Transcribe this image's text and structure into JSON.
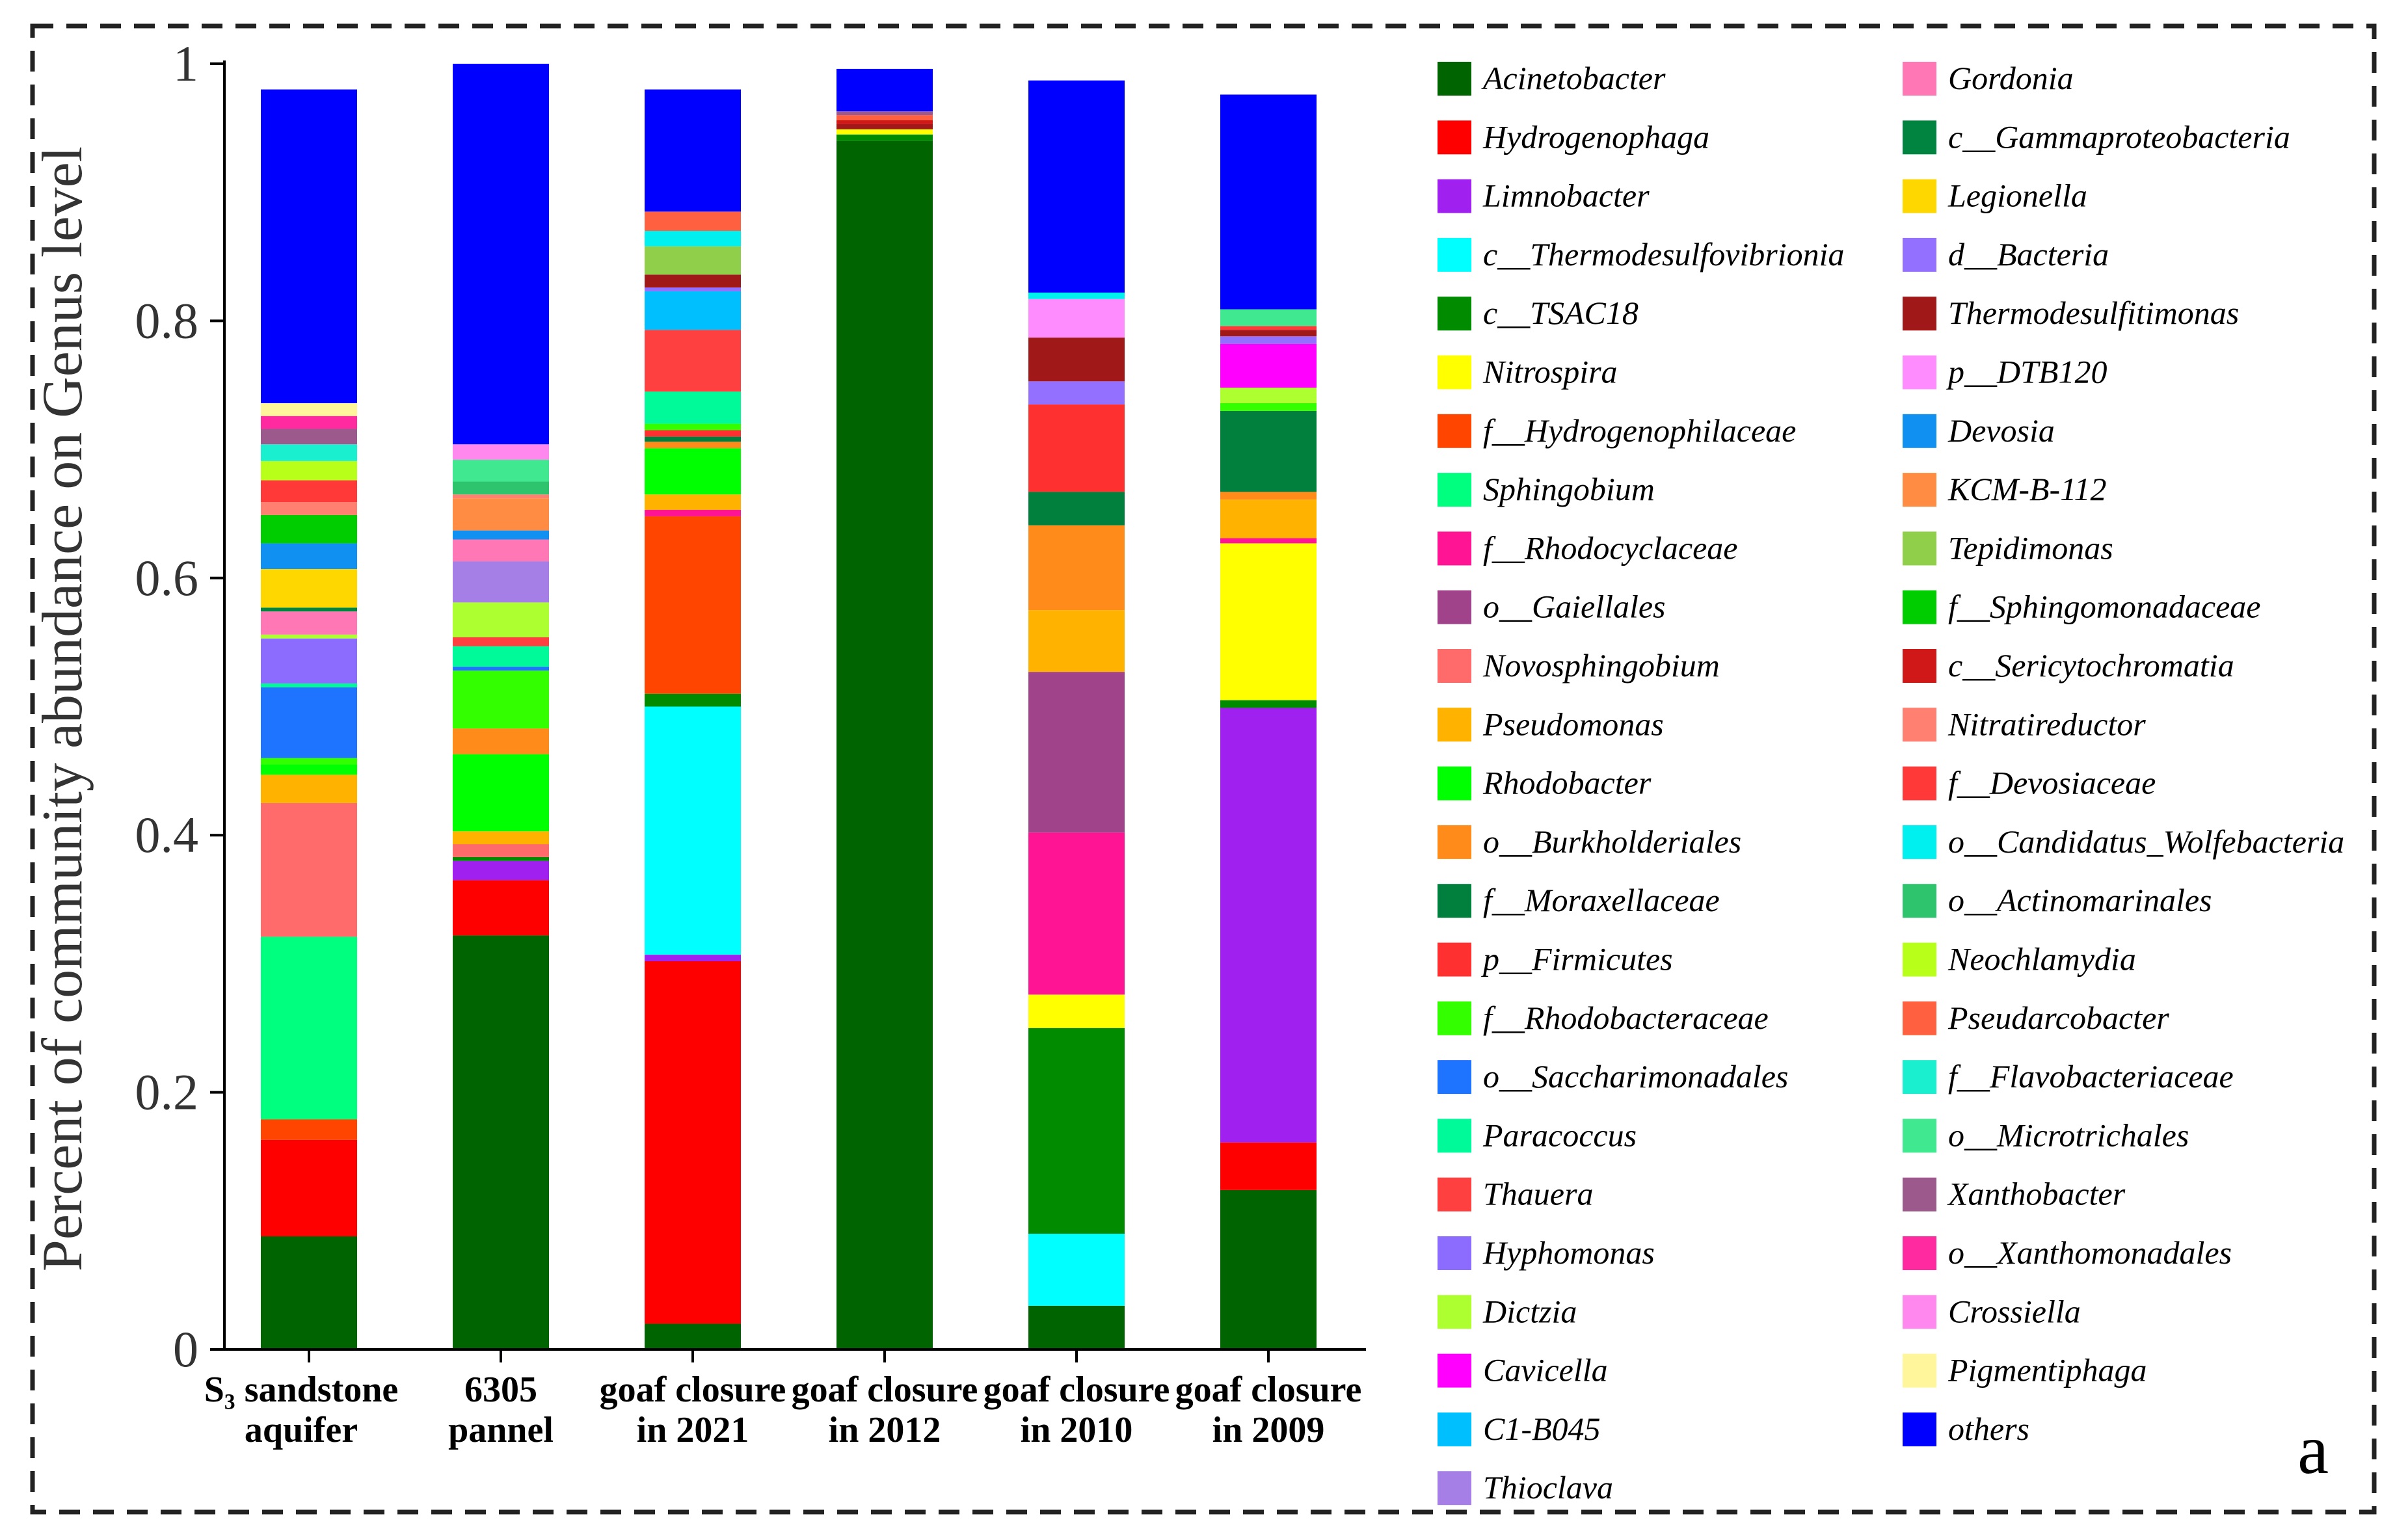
{
  "chart_data": {
    "type": "bar",
    "stacked": true,
    "ylabel": "Percent of community abundance on Genus level",
    "ylim": [
      0,
      1
    ],
    "yticks": [
      "0",
      "0.2",
      "0.4",
      "0.6",
      "0.8",
      "1"
    ],
    "panel_label": "a",
    "categories": [
      [
        "S₃ sandstone",
        "aquifer"
      ],
      [
        "6305",
        "pannel"
      ],
      [
        "goaf closure",
        "in 2021"
      ],
      [
        "goaf closure",
        "in 2012"
      ],
      [
        "goaf closure",
        "in 2010"
      ],
      [
        "goaf closure",
        "in 2009"
      ]
    ],
    "series": [
      {
        "name": "Acinetobacter",
        "color": "#006400",
        "values": [
          0.088,
          0.322,
          0.02,
          0.94,
          0.034,
          0.124
        ]
      },
      {
        "name": "Hydrogenophaga",
        "color": "#FF0000",
        "values": [
          0.075,
          0.043,
          0.282,
          0.0,
          0.0,
          0.037
        ]
      },
      {
        "name": "Limnobacter",
        "color": "#A020F0",
        "values": [
          0.0,
          0.015,
          0.005,
          0.0,
          0.0,
          0.338
        ]
      },
      {
        "name": "c__Thermodesulfovibrionia",
        "color": "#00FFFF",
        "values": [
          0.0,
          0.0,
          0.193,
          0.0,
          0.056,
          0.0
        ]
      },
      {
        "name": "c__TSAC18",
        "color": "#008B00",
        "values": [
          0.0,
          0.003,
          0.01,
          0.005,
          0.16,
          0.006
        ]
      },
      {
        "name": "Nitrospira",
        "color": "#FFFF00",
        "values": [
          0.0,
          0.0,
          0.0,
          0.004,
          0.026,
          0.122
        ]
      },
      {
        "name": "f__Hydrogenophilaceae",
        "color": "#FF4500",
        "values": [
          0.016,
          0.0,
          0.138,
          0.0,
          0.0,
          0.0
        ]
      },
      {
        "name": "Sphingobium",
        "color": "#00FF7F",
        "values": [
          0.142,
          0.0,
          0.0,
          0.0,
          0.0,
          0.0
        ]
      },
      {
        "name": "f__Rhodocyclaceae",
        "color": "#FF1493",
        "values": [
          0.0,
          0.0,
          0.005,
          0.0,
          0.126,
          0.004
        ]
      },
      {
        "name": "o__Gaiellales",
        "color": "#A0438B",
        "values": [
          0.0,
          0.0,
          0.0,
          0.0,
          0.125,
          0.0
        ]
      },
      {
        "name": "Novosphingobium",
        "color": "#FF6A6A",
        "values": [
          0.104,
          0.01,
          0.0,
          0.0,
          0.0,
          0.0
        ]
      },
      {
        "name": "Pseudomonas",
        "color": "#FFB300",
        "values": [
          0.022,
          0.01,
          0.012,
          0.0,
          0.048,
          0.03
        ]
      },
      {
        "name": "Rhodobacter",
        "color": "#00FF00",
        "values": [
          0.008,
          0.06,
          0.036,
          0.0,
          0.0,
          0.0
        ]
      },
      {
        "name": "o__Burkholderiales",
        "color": "#FF8C1A",
        "values": [
          0.0,
          0.02,
          0.005,
          0.0,
          0.066,
          0.006
        ]
      },
      {
        "name": "f__Moraxellaceae",
        "color": "#00803C",
        "values": [
          0.0,
          0.0,
          0.004,
          0.0,
          0.026,
          0.063
        ]
      },
      {
        "name": "p__Firmicutes",
        "color": "#FF3030",
        "values": [
          0.0,
          0.0,
          0.005,
          0.0,
          0.068,
          0.0
        ]
      },
      {
        "name": "f__Rhodobacteraceae",
        "color": "#33FF00",
        "values": [
          0.005,
          0.045,
          0.005,
          0.0,
          0.0,
          0.006
        ]
      },
      {
        "name": "o__Saccharimonadales",
        "color": "#1E73FF",
        "values": [
          0.055,
          0.003,
          0.0,
          0.0,
          0.0,
          0.0
        ]
      },
      {
        "name": "Paracoccus",
        "color": "#00FA9A",
        "values": [
          0.003,
          0.016,
          0.025,
          0.0,
          0.0,
          0.0
        ]
      },
      {
        "name": "Thauera",
        "color": "#FF4040",
        "values": [
          0.0,
          0.007,
          0.048,
          0.0,
          0.0,
          0.0
        ]
      },
      {
        "name": "Hyphomonas",
        "color": "#8C6BFF",
        "values": [
          0.035,
          0.0,
          0.0,
          0.0,
          0.0,
          0.0
        ]
      },
      {
        "name": "Dictzia",
        "color": "#ADFF2F",
        "values": [
          0.003,
          0.027,
          0.0,
          0.0,
          0.0,
          0.012
        ]
      },
      {
        "name": "Cavicella",
        "color": "#FF00FF",
        "values": [
          0.0,
          0.0,
          0.0,
          0.0,
          0.0,
          0.034
        ]
      },
      {
        "name": "C1-B045",
        "color": "#00BFFF",
        "values": [
          0.0,
          0.0,
          0.03,
          0.0,
          0.0,
          0.0
        ]
      },
      {
        "name": "Thioclava",
        "color": "#A57EE6",
        "values": [
          0.0,
          0.032,
          0.0,
          0.0,
          0.0,
          0.0
        ]
      },
      {
        "name": "Gordonia",
        "color": "#FF77B4",
        "values": [
          0.018,
          0.017,
          0.0,
          0.0,
          0.0,
          0.0
        ]
      },
      {
        "name": "c__Gammaproteobacteria",
        "color": "#00843F",
        "values": [
          0.003,
          0.0,
          0.0,
          0.0,
          0.0,
          0.0
        ]
      },
      {
        "name": "Legionella",
        "color": "#FFD700",
        "values": [
          0.03,
          0.0,
          0.0,
          0.0,
          0.0,
          0.0
        ]
      },
      {
        "name": "d__Bacteria",
        "color": "#9370FF",
        "values": [
          0.0,
          0.0,
          0.003,
          0.0,
          0.018,
          0.006
        ]
      },
      {
        "name": "Thermodesulfitimonas",
        "color": "#A01818",
        "values": [
          0.0,
          0.0,
          0.01,
          0.004,
          0.034,
          0.005
        ]
      },
      {
        "name": "p__DTB120",
        "color": "#FF8CFF",
        "values": [
          0.0,
          0.0,
          0.0,
          0.0,
          0.03,
          0.0
        ]
      },
      {
        "name": "Devosia",
        "color": "#1090F0",
        "values": [
          0.02,
          0.007,
          0.0,
          0.0,
          0.0,
          0.0
        ]
      },
      {
        "name": "KCM-B-112",
        "color": "#FF8C42",
        "values": [
          0.0,
          0.025,
          0.0,
          0.0,
          0.0,
          0.0
        ]
      },
      {
        "name": "Tepidimonas",
        "color": "#8FCF4A",
        "values": [
          0.0,
          0.0,
          0.022,
          0.0,
          0.0,
          0.0
        ]
      },
      {
        "name": "f__Sphingomonadaceae",
        "color": "#00CD00",
        "values": [
          0.022,
          0.0,
          0.0,
          0.0,
          0.0,
          0.0
        ]
      },
      {
        "name": "c__Sericytochromatia",
        "color": "#D01818",
        "values": [
          0.0,
          0.0,
          0.0,
          0.003,
          0.0,
          0.0
        ]
      },
      {
        "name": "Nitratireductor",
        "color": "#FF8070",
        "values": [
          0.01,
          0.003,
          0.0,
          0.0,
          0.0,
          0.0
        ]
      },
      {
        "name": "f__Devosiaceae",
        "color": "#FF3838",
        "values": [
          0.017,
          0.0,
          0.0,
          0.0,
          0.0,
          0.003
        ]
      },
      {
        "name": "o__Candidatus_Wolfebacteria",
        "color": "#00F0F0",
        "values": [
          0.0,
          0.0,
          0.012,
          0.0,
          0.005,
          0.0
        ]
      },
      {
        "name": "o__Actinomarinales",
        "color": "#2EC46E",
        "values": [
          0.0,
          0.01,
          0.0,
          0.0,
          0.0,
          0.0
        ]
      },
      {
        "name": "Neochlamydia",
        "color": "#B8FF1A",
        "values": [
          0.015,
          0.0,
          0.0,
          0.0,
          0.0,
          0.0
        ]
      },
      {
        "name": "Pseudarcobacter",
        "color": "#FF6040",
        "values": [
          0.0,
          0.0,
          0.015,
          0.004,
          0.0,
          0.0
        ]
      },
      {
        "name": "f__Flavobacteriaceae",
        "color": "#1AF0D0",
        "values": [
          0.013,
          0.0,
          0.0,
          0.0,
          0.0,
          0.0
        ]
      },
      {
        "name": "o__Microtrichales",
        "color": "#40E890",
        "values": [
          0.0,
          0.017,
          0.0,
          0.0,
          0.0,
          0.013
        ]
      },
      {
        "name": "Xanthobacter",
        "color": "#9C5A8C",
        "values": [
          0.012,
          0.0,
          0.0,
          0.003,
          0.0,
          0.0
        ]
      },
      {
        "name": "o__Xanthomonadales",
        "color": "#FF2AA0",
        "values": [
          0.01,
          0.0,
          0.0,
          0.0,
          0.0,
          0.0
        ]
      },
      {
        "name": "Crossiella",
        "color": "#FF88EE",
        "values": [
          0.0,
          0.012,
          0.0,
          0.0,
          0.0,
          0.0
        ]
      },
      {
        "name": "Pigmentiphaga",
        "color": "#FFF59A",
        "values": [
          0.01,
          0.0,
          0.0,
          0.0,
          0.0,
          0.0
        ]
      },
      {
        "name": "others",
        "color": "#0000FF",
        "values": [
          0.244,
          0.296,
          0.095,
          0.033,
          0.165,
          0.167
        ]
      }
    ]
  }
}
